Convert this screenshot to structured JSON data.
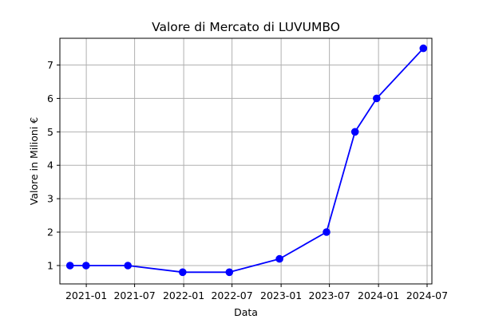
{
  "chart_data": {
    "type": "line",
    "title": "Valore di Mercato di LUVUMBO",
    "xlabel": "Data",
    "ylabel": "Valore in Milioni €",
    "grid": true,
    "x_type": "date",
    "x_ticks": [
      "2021-01",
      "2021-07",
      "2022-01",
      "2022-07",
      "2023-01",
      "2023-07",
      "2024-01",
      "2024-07"
    ],
    "y_ticks": [
      1,
      2,
      3,
      4,
      5,
      6,
      7
    ],
    "ylim": [
      0.45,
      7.8
    ],
    "xlim": [
      "2020-09-24",
      "2024-07-19"
    ],
    "series": [
      {
        "name": "",
        "color": "#0000ff",
        "marker": "circle",
        "points": [
          {
            "x": "2020-11-01",
            "y": 1.0
          },
          {
            "x": "2020-12-31",
            "y": 1.0
          },
          {
            "x": "2021-06-06",
            "y": 1.0
          },
          {
            "x": "2021-12-28",
            "y": 0.8
          },
          {
            "x": "2022-06-21",
            "y": 0.8
          },
          {
            "x": "2022-12-26",
            "y": 1.2
          },
          {
            "x": "2023-06-20",
            "y": 2.0
          },
          {
            "x": "2023-10-05",
            "y": 5.0
          },
          {
            "x": "2023-12-25",
            "y": 6.0
          },
          {
            "x": "2024-06-17",
            "y": 7.5
          }
        ]
      }
    ]
  }
}
